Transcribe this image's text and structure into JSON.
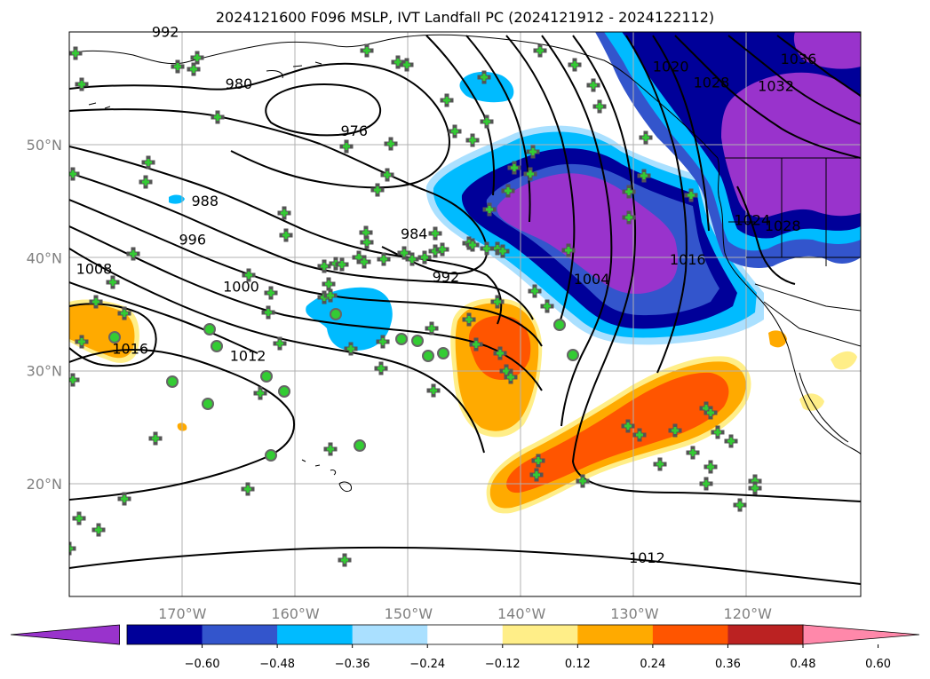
{
  "title": "2024121600 F096 MSLP, IVT Landfall PC (2024121912 - 2024122112)",
  "lat_ticks": [
    {
      "label": "50°N",
      "lat": 50
    },
    {
      "label": "40°N",
      "lat": 40
    },
    {
      "label": "30°N",
      "lat": 30
    },
    {
      "label": "20°N",
      "lat": 20
    }
  ],
  "lon_ticks": [
    {
      "label": "170°W",
      "lon": -170
    },
    {
      "label": "160°W",
      "lon": -160
    },
    {
      "label": "150°W",
      "lon": -150
    },
    {
      "label": "140°W",
      "lon": -140
    },
    {
      "label": "130°W",
      "lon": -130
    },
    {
      "label": "120°W",
      "lon": -120
    }
  ],
  "colorbar": {
    "colors": [
      "#9933cc",
      "#000099",
      "#3355cc",
      "#00bbff",
      "#aae0ff",
      "#ffffff",
      "#ffee88",
      "#ffaa00",
      "#ff5500",
      "#bb2222",
      "#ff88aa"
    ],
    "labels": [
      "−0.60",
      "−0.48",
      "−0.36",
      "−0.24",
      "−0.12",
      "0.12",
      "0.24",
      "0.36",
      "0.48",
      "0.60"
    ]
  },
  "contour_labels": [
    {
      "text": "992",
      "lon": -171.5,
      "lat": 59.9
    },
    {
      "text": "980",
      "lon": -165,
      "lat": 55.3
    },
    {
      "text": "976",
      "lon": -154.8,
      "lat": 51.1
    },
    {
      "text": "988",
      "lon": -168,
      "lat": 44.9
    },
    {
      "text": "996",
      "lon": -169.1,
      "lat": 41.5
    },
    {
      "text": "984",
      "lon": -149.5,
      "lat": 42.0
    },
    {
      "text": "1008",
      "lon": -177.8,
      "lat": 38.9
    },
    {
      "text": "1000",
      "lon": -164.8,
      "lat": 37.3
    },
    {
      "text": "992",
      "lon": -146.7,
      "lat": 38.2
    },
    {
      "text": "1016",
      "lon": -174.6,
      "lat": 31.8
    },
    {
      "text": "1012",
      "lon": -164.2,
      "lat": 31.2
    },
    {
      "text": "1004",
      "lon": -133.8,
      "lat": 38.0
    },
    {
      "text": "1016",
      "lon": -125.3,
      "lat": 39.7
    },
    {
      "text": "1020",
      "lon": -126.8,
      "lat": 56.8
    },
    {
      "text": "1028",
      "lon": -123.2,
      "lat": 55.4
    },
    {
      "text": "1032",
      "lon": -117.5,
      "lat": 55.1
    },
    {
      "text": "1036",
      "lon": -115.5,
      "lat": 57.5
    },
    {
      "text": "1024",
      "lon": -119.6,
      "lat": 43.2
    },
    {
      "text": "1028",
      "lon": -116.9,
      "lat": 42.7
    },
    {
      "text": "1012",
      "lon": -128.9,
      "lat": 13.3
    }
  ]
}
